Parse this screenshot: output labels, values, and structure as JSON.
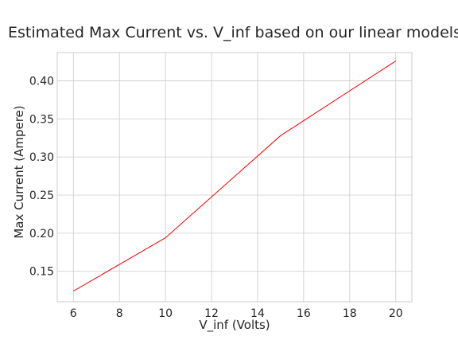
{
  "chart_data": {
    "type": "line",
    "title": "Estimated Max Current vs. V_inf based on our linear models",
    "xlabel": "V_inf (Volts)",
    "ylabel": "Max Current (Ampere)",
    "xlim": [
      5.3,
      20.7
    ],
    "ylim": [
      0.11,
      0.437
    ],
    "xticks": [
      6,
      8,
      10,
      12,
      14,
      16,
      18,
      20
    ],
    "yticks": [
      0.15,
      0.2,
      0.25,
      0.3,
      0.35,
      0.4
    ],
    "ytick_labels": [
      "0.15",
      "0.20",
      "0.25",
      "0.30",
      "0.35",
      "0.40"
    ],
    "grid": true,
    "series": [
      {
        "color": "#ff0000",
        "x": [
          6,
          10,
          15,
          20
        ],
        "y": [
          0.124,
          0.194,
          0.328,
          0.426
        ]
      }
    ]
  }
}
